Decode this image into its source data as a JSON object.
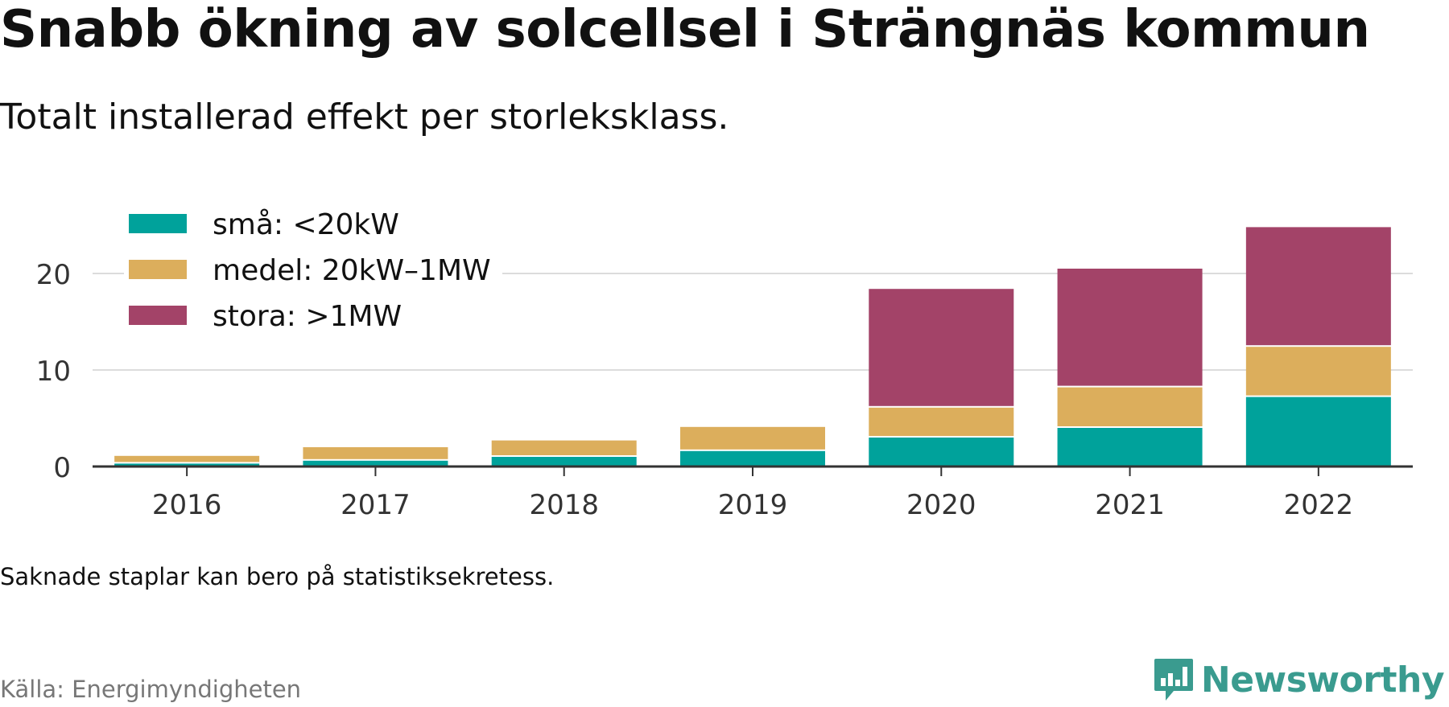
{
  "header": {
    "title": "Snabb ökning av solcellsel i Strängnäs kommun",
    "subtitle": "Totalt installerad effekt per storleksklass."
  },
  "footer": {
    "note": "Saknade staplar kan bero på statistiksekretess.",
    "source": "Källa: Energimyndigheten",
    "brand": "Newsworthy",
    "brand_color": "#3a9b8f"
  },
  "chart_data": {
    "type": "bar",
    "stacked": true,
    "title": "Snabb ökning av solcellsel i Strängnäs kommun",
    "subtitle": "Totalt installerad effekt per storleksklass.",
    "xlabel": "",
    "ylabel": "",
    "ylim": [
      0,
      26
    ],
    "yticks": [
      0,
      10,
      20
    ],
    "grid": true,
    "legend_position": "top-left",
    "categories": [
      "2016",
      "2017",
      "2018",
      "2019",
      "2020",
      "2021",
      "2022"
    ],
    "series": [
      {
        "name": "små: <20kW",
        "color": "#00a29b",
        "values": [
          0.3,
          0.6,
          1.0,
          1.6,
          3.0,
          4.0,
          7.2
        ]
      },
      {
        "name": "medel: 20kW–1MW",
        "color": "#dcae5c",
        "values": [
          0.8,
          1.4,
          1.7,
          2.5,
          3.1,
          4.2,
          5.2
        ]
      },
      {
        "name": "stora: >1MW",
        "color": "#a34368",
        "values": [
          0,
          0,
          0,
          0,
          12.3,
          12.3,
          12.4
        ]
      }
    ]
  }
}
